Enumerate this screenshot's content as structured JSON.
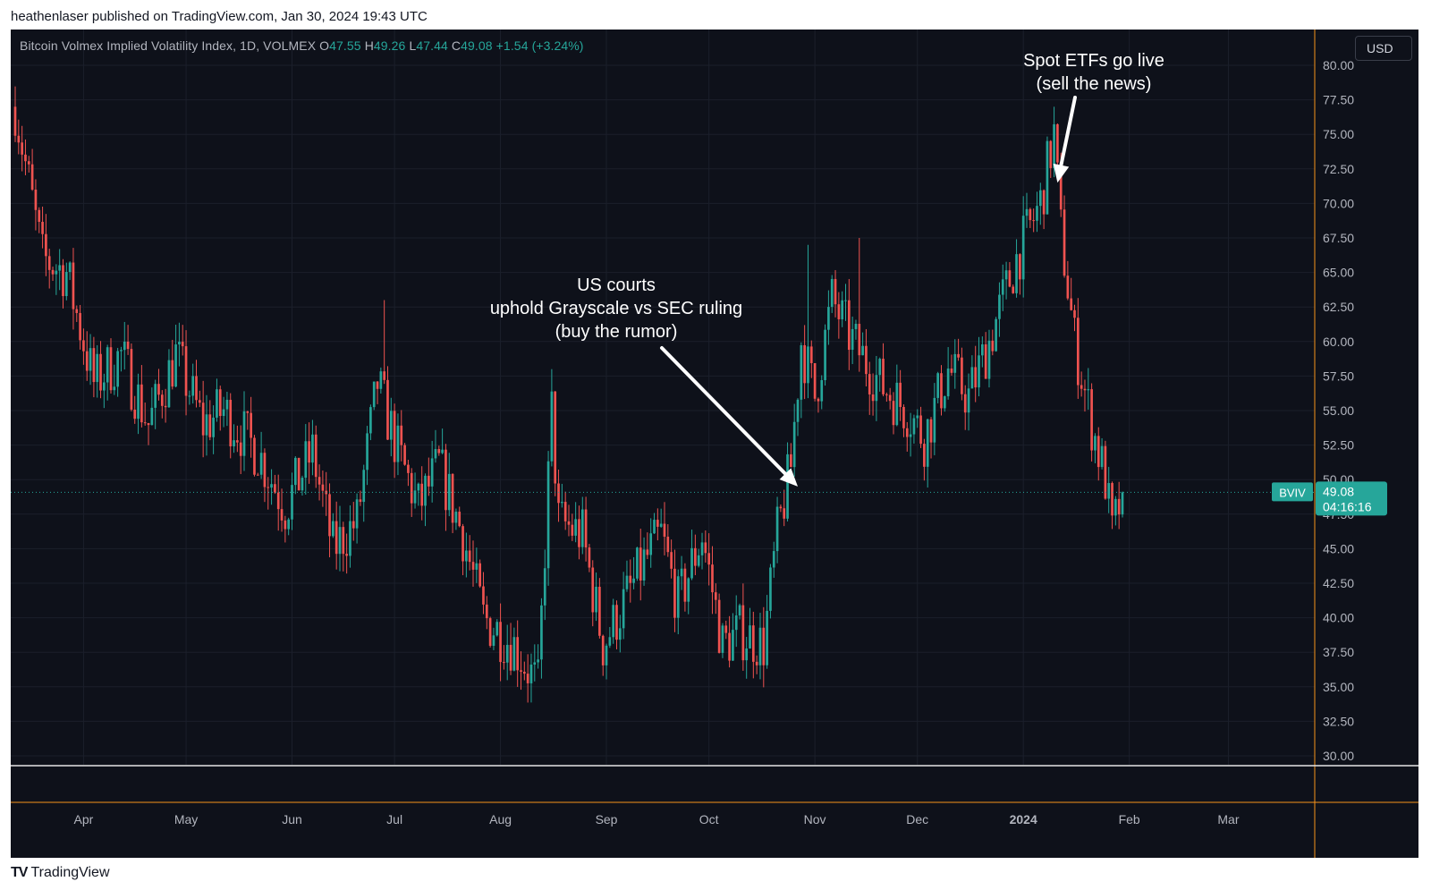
{
  "publisher": "heathenlaser published on TradingView.com, Jan 30, 2024 19:43 UTC",
  "legend": {
    "name": "Bitcoin Volmex Implied Volatility Index, 1D, VOLMEX",
    "o_label": "O",
    "o": "47.55",
    "h_label": "H",
    "h": "49.26",
    "l_label": "L",
    "l": "47.44",
    "c_label": "C",
    "c": "49.08",
    "change": "+1.54 (+3.24%)"
  },
  "currency_button": "USD",
  "footer": {
    "logo_mark": "TV",
    "brand": "TradingView"
  },
  "colors": {
    "background": "#0e111a",
    "up": "#26a69a",
    "down": "#ef5350",
    "grid": "#1b1f2b",
    "axis_text": "#b2b5be",
    "axis_accent": "#f7931a"
  },
  "chart_data": {
    "type": "candlestick",
    "symbol": "BVIV",
    "timeframe": "1D",
    "ylim": [
      28.75,
      81.25
    ],
    "y_ticks": [
      "30.00",
      "32.50",
      "35.00",
      "37.50",
      "40.00",
      "42.50",
      "45.00",
      "47.50",
      "50.00",
      "52.50",
      "55.00",
      "57.50",
      "60.00",
      "62.50",
      "65.00",
      "67.50",
      "70.00",
      "72.50",
      "75.00",
      "77.50",
      "80.00"
    ],
    "x_ticks": [
      {
        "label": "Apr",
        "date": "2023-04-01",
        "bold": false
      },
      {
        "label": "May",
        "date": "2023-05-01",
        "bold": false
      },
      {
        "label": "Jun",
        "date": "2023-06-01",
        "bold": false
      },
      {
        "label": "Jul",
        "date": "2023-07-01",
        "bold": false
      },
      {
        "label": "Aug",
        "date": "2023-08-01",
        "bold": false
      },
      {
        "label": "Sep",
        "date": "2023-09-01",
        "bold": false
      },
      {
        "label": "Oct",
        "date": "2023-10-01",
        "bold": false
      },
      {
        "label": "Nov",
        "date": "2023-11-01",
        "bold": false
      },
      {
        "label": "Dec",
        "date": "2023-12-01",
        "bold": false
      },
      {
        "label": "2024",
        "date": "2024-01-01",
        "bold": true
      },
      {
        "label": "Feb",
        "date": "2024-02-01",
        "bold": false
      },
      {
        "label": "Mar",
        "date": "2024-03-01",
        "bold": false
      }
    ],
    "path": [
      [
        "2023-03-12",
        77
      ],
      [
        "2023-03-20",
        66
      ],
      [
        "2023-03-27",
        65
      ],
      [
        "2023-04-04",
        57
      ],
      [
        "2023-04-12",
        59
      ],
      [
        "2023-04-20",
        54
      ],
      [
        "2023-04-28",
        59
      ],
      [
        "2023-05-06",
        54
      ],
      [
        "2023-05-12",
        55
      ],
      [
        "2023-05-22",
        52
      ],
      [
        "2023-05-30",
        48
      ],
      [
        "2023-06-07",
        52
      ],
      [
        "2023-06-13",
        45
      ],
      [
        "2023-06-20",
        47
      ],
      [
        "2023-06-26",
        57
      ],
      [
        "2023-07-02",
        52
      ],
      [
        "2023-07-08",
        48
      ],
      [
        "2023-07-14",
        51
      ],
      [
        "2023-07-21",
        46
      ],
      [
        "2023-07-27",
        40
      ],
      [
        "2023-08-05",
        38
      ],
      [
        "2023-08-12",
        35
      ],
      [
        "2023-08-16",
        55
      ],
      [
        "2023-08-18",
        47
      ],
      [
        "2023-08-25",
        46
      ],
      [
        "2023-08-31",
        38
      ],
      [
        "2023-09-06",
        41
      ],
      [
        "2023-09-12",
        44
      ],
      [
        "2023-09-17",
        46
      ],
      [
        "2023-09-22",
        41
      ],
      [
        "2023-09-29",
        46
      ],
      [
        "2023-10-05",
        38
      ],
      [
        "2023-10-10",
        39
      ],
      [
        "2023-10-17",
        38
      ],
      [
        "2023-10-21",
        46
      ],
      [
        "2023-10-25",
        51
      ],
      [
        "2023-10-28",
        60
      ],
      [
        "2023-11-01",
        56
      ],
      [
        "2023-11-06",
        63
      ],
      [
        "2023-11-12",
        60
      ],
      [
        "2023-11-20",
        57
      ],
      [
        "2023-11-28",
        55
      ],
      [
        "2023-12-03",
        53
      ],
      [
        "2023-12-10",
        58
      ],
      [
        "2023-12-16",
        56
      ],
      [
        "2023-12-22",
        60
      ],
      [
        "2023-12-30",
        66
      ],
      [
        "2024-01-06",
        70
      ],
      [
        "2024-01-10",
        75
      ],
      [
        "2024-01-12",
        68
      ],
      [
        "2024-01-16",
        60
      ],
      [
        "2024-01-21",
        54
      ],
      [
        "2024-01-25",
        50
      ],
      [
        "2024-01-27",
        46
      ],
      [
        "2024-01-30",
        49.08
      ]
    ],
    "spikes": [
      {
        "date": "2023-06-28",
        "high": 63.0
      },
      {
        "date": "2023-08-16",
        "high": 58.0
      },
      {
        "date": "2023-10-30",
        "high": 67.0
      },
      {
        "date": "2023-11-14",
        "high": 67.5
      },
      {
        "date": "2024-01-10",
        "high": 77.0
      }
    ],
    "last_price": {
      "symbol": "BVIV",
      "value": "49.08",
      "countdown": "04:16:16"
    },
    "annotations": [
      {
        "lines": [
          "US courts",
          "uphold Grayscale vs SEC ruling",
          "(buy the rumor)"
        ],
        "arrow_to": {
          "date": "2023-10-27",
          "value": 49.5
        }
      },
      {
        "lines": [
          "Spot ETFs go live",
          "(sell the news)"
        ],
        "arrow_to": {
          "date": "2024-01-11",
          "value": 71.5
        }
      }
    ]
  }
}
